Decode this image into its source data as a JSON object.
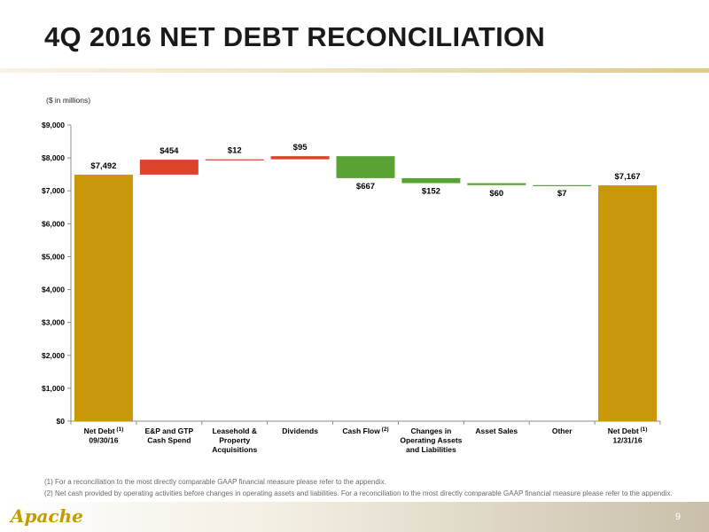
{
  "header": {
    "title": "4Q 2016 NET DEBT RECONCILIATION"
  },
  "units_label": "($ in millions)",
  "chart_data": {
    "type": "bar",
    "subtype": "waterfall",
    "categories": [
      [
        "Net Debt",
        "09/30/16"
      ],
      [
        "E&P and GTP",
        "Cash Spend"
      ],
      [
        "Leasehold &",
        "Property",
        "Acquisitions"
      ],
      [
        "Dividends"
      ],
      [
        "Cash Flow"
      ],
      [
        "Changes in",
        "Operating Assets",
        "and Liabilities"
      ],
      [
        "Asset Sales"
      ],
      [
        "Other"
      ],
      [
        "Net Debt",
        "12/31/16"
      ]
    ],
    "category_superscripts": [
      "(1)",
      "",
      "",
      "",
      "(2)",
      "",
      "",
      "",
      "(1)"
    ],
    "steps": [
      {
        "kind": "total",
        "start": 0,
        "end": 7492,
        "label": "$7,492"
      },
      {
        "kind": "increase",
        "start": 7492,
        "end": 7946,
        "label": "$454"
      },
      {
        "kind": "increase",
        "start": 7946,
        "end": 7958,
        "label": "$12"
      },
      {
        "kind": "increase",
        "start": 7958,
        "end": 8053,
        "label": "$95"
      },
      {
        "kind": "decrease",
        "start": 8053,
        "end": 7386,
        "label": "$667"
      },
      {
        "kind": "decrease",
        "start": 7386,
        "end": 7234,
        "label": "$152"
      },
      {
        "kind": "decrease",
        "start": 7234,
        "end": 7174,
        "label": "$60"
      },
      {
        "kind": "decrease",
        "start": 7174,
        "end": 7167,
        "label": "$7"
      },
      {
        "kind": "total",
        "start": 0,
        "end": 7167,
        "label": "$7,167"
      }
    ],
    "ylim": [
      0,
      9000
    ],
    "yticks": [
      0,
      1000,
      2000,
      3000,
      4000,
      5000,
      6000,
      7000,
      8000,
      9000
    ],
    "ytick_labels": [
      "$0",
      "$1,000",
      "$2,000",
      "$3,000",
      "$4,000",
      "$5,000",
      "$6,000",
      "$7,000",
      "$8,000",
      "$9,000"
    ],
    "grid": false,
    "colors": {
      "total": "#c9980a",
      "increase": "#d9442b",
      "decrease": "#59a236",
      "axis": "#8c8c8c"
    }
  },
  "footnotes": [
    "(1)  For a reconciliation to the most directly comparable GAAP financial measure please refer to the appendix.",
    "(2)  Net cash provided by operating activities before changes in operating assets and liabilities.  For a reconciliation to the most directly comparable GAAP financial measure please refer to the appendix."
  ],
  "footer": {
    "logo_text": "Apache",
    "page_number": "9"
  }
}
